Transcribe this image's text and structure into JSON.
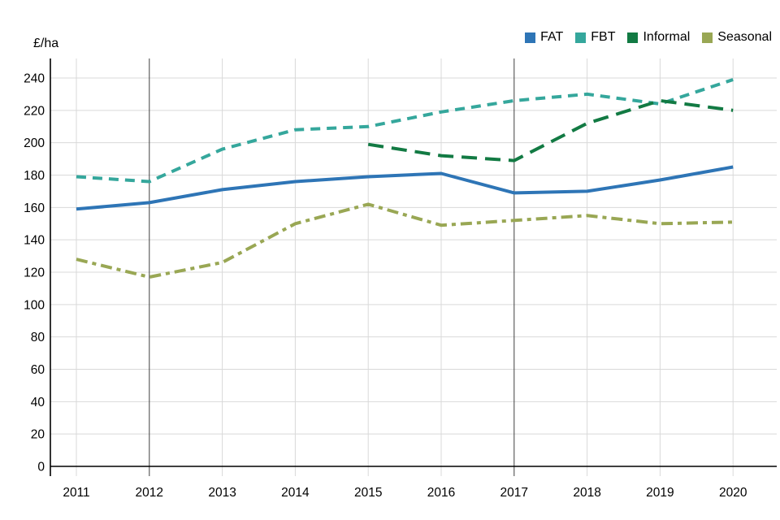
{
  "unit_label": "£/ha",
  "legend": [
    {
      "label": "FAT",
      "color": "#2e75b6"
    },
    {
      "label": "FBT",
      "color": "#35a79c"
    },
    {
      "label": "Informal",
      "color": "#127a43"
    },
    {
      "label": "Seasonal",
      "color": "#99a754"
    }
  ],
  "chart_data": {
    "type": "line",
    "title": "",
    "ylabel": "£/ha",
    "xlabel": "",
    "x": [
      2011,
      2012,
      2013,
      2014,
      2015,
      2016,
      2017,
      2018,
      2019,
      2020
    ],
    "series": [
      {
        "name": "FAT",
        "color": "#2e75b6",
        "style": "solid",
        "values": [
          159,
          163,
          171,
          176,
          179,
          181,
          169,
          170,
          177,
          185
        ]
      },
      {
        "name": "FBT",
        "color": "#35a79c",
        "style": "dashed",
        "values": [
          179,
          176,
          196,
          208,
          210,
          219,
          226,
          230,
          224,
          239
        ]
      },
      {
        "name": "Informal",
        "color": "#127a43",
        "style": "long-dash",
        "values": [
          null,
          null,
          null,
          null,
          199,
          192,
          189,
          212,
          226,
          220
        ]
      },
      {
        "name": "Seasonal",
        "color": "#99a754",
        "style": "dash-dot",
        "values": [
          128,
          117,
          126,
          150,
          162,
          149,
          152,
          155,
          150,
          151
        ]
      }
    ],
    "ylim": [
      0,
      240
    ],
    "ytick_step": 20,
    "grid": true,
    "grid_color": "#d9d9d9",
    "highlight_gridline_color": "#3f3f3f",
    "axis_color": "#000000",
    "highlighted_x_gridlines": [
      2012,
      2017
    ],
    "legend_position": "top-right"
  }
}
